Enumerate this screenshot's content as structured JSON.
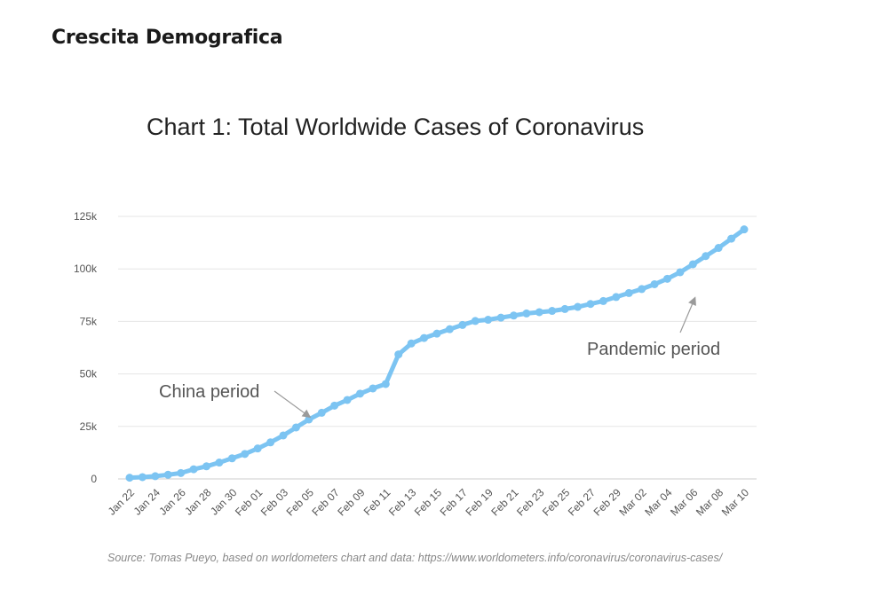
{
  "heading": "Crescita Demografica",
  "source": "Source: Tomas Pueyo, based on worldometers chart and data: https://www.worldometers.info/coronavirus/coronavirus-cases/",
  "chart_data": {
    "type": "line",
    "title": "Chart 1: Total Worldwide Cases of Coronavirus",
    "xlabel": "",
    "ylabel": "",
    "ylim": [
      0,
      125000
    ],
    "grid": true,
    "line_color": "#7cc4f2",
    "y_ticks": [
      {
        "value": 0,
        "label": "0"
      },
      {
        "value": 25000,
        "label": "25k"
      },
      {
        "value": 50000,
        "label": "50k"
      },
      {
        "value": 75000,
        "label": "75k"
      },
      {
        "value": 100000,
        "label": "100k"
      },
      {
        "value": 125000,
        "label": "125k"
      }
    ],
    "x_tick_labels": [
      "Jan 22",
      "Jan 24",
      "Jan 26",
      "Jan 28",
      "Jan 30",
      "Feb 01",
      "Feb 03",
      "Feb 05",
      "Feb 07",
      "Feb 09",
      "Feb 11",
      "Feb 13",
      "Feb 15",
      "Feb 17",
      "Feb 19",
      "Feb 21",
      "Feb 23",
      "Feb 25",
      "Feb 27",
      "Feb 29",
      "Mar 02",
      "Mar 04",
      "Mar 06",
      "Mar 08",
      "Mar 10"
    ],
    "series": [
      {
        "x": [
          "Jan 22",
          "Jan 23",
          "Jan 24",
          "Jan 25",
          "Jan 26",
          "Jan 27",
          "Jan 28",
          "Jan 29",
          "Jan 30",
          "Jan 31",
          "Feb 01",
          "Feb 02",
          "Feb 03",
          "Feb 04",
          "Feb 05",
          "Feb 06",
          "Feb 07",
          "Feb 08",
          "Feb 09",
          "Feb 10",
          "Feb 11",
          "Feb 12",
          "Feb 13",
          "Feb 14",
          "Feb 15",
          "Feb 16",
          "Feb 17",
          "Feb 18",
          "Feb 19",
          "Feb 20",
          "Feb 21",
          "Feb 22",
          "Feb 23",
          "Feb 24",
          "Feb 25",
          "Feb 26",
          "Feb 27",
          "Feb 28",
          "Feb 29",
          "Mar 01",
          "Mar 02",
          "Mar 03",
          "Mar 04",
          "Mar 05",
          "Mar 06",
          "Mar 07",
          "Mar 08",
          "Mar 09",
          "Mar 10"
        ],
        "values": [
          580,
          850,
          1300,
          2000,
          2800,
          4600,
          6000,
          7800,
          9800,
          11900,
          14500,
          17400,
          20700,
          24500,
          28300,
          31500,
          34900,
          37600,
          40600,
          43100,
          45200,
          59300,
          64500,
          67100,
          69200,
          71300,
          73300,
          75200,
          75800,
          76800,
          77800,
          78800,
          79400,
          80000,
          80900,
          81900,
          83300,
          84700,
          86600,
          88500,
          90400,
          92700,
          95300,
          98400,
          102200,
          106100,
          110000,
          114400,
          118800
        ]
      }
    ],
    "annotations": [
      {
        "text": "China period",
        "points_to": {
          "x": "Feb 06",
          "y": 28000
        }
      },
      {
        "text": "Pandemic period",
        "points_to": {
          "x": "Mar 06",
          "y": 91000
        }
      }
    ]
  }
}
